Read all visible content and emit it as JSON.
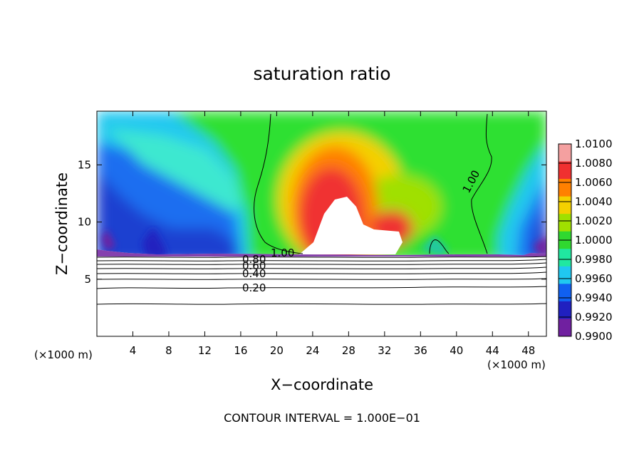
{
  "chart_data": {
    "type": "heatmap",
    "title": "saturation ratio",
    "xlabel": "X−coordinate",
    "ylabel": "Z−coordinate",
    "x_unit_left": "(×1000 m)",
    "x_unit_right": "(×1000 m)",
    "xlim": [
      0,
      50
    ],
    "ylim": [
      0,
      19.7
    ],
    "x_ticks": [
      4,
      8,
      12,
      16,
      20,
      24,
      28,
      32,
      36,
      40,
      44,
      48
    ],
    "y_ticks": [
      5,
      10,
      15
    ],
    "footer": "CONTOUR INTERVAL = 1.000E−01",
    "colorbar": {
      "levels": [
        "1.0100",
        "1.0080",
        "1.0060",
        "1.0040",
        "1.0020",
        "1.0000",
        "0.9980",
        "0.9960",
        "0.9940",
        "0.9920",
        "0.9900"
      ],
      "colors": [
        "#f4a0a0",
        "#f03030",
        "#ff8000",
        "#f4d000",
        "#a0e000",
        "#30d830",
        "#20e8a0",
        "#20c8f0",
        "#1060f0",
        "#2020c0",
        "#7020a0"
      ]
    },
    "contour_labels": [
      {
        "text": "1.00",
        "x": 19.8,
        "z": 7.5
      },
      {
        "text": "1.00",
        "x": 42.8,
        "z": 13.8
      },
      {
        "text": "0.80",
        "x": 17.8,
        "z": 6.9
      },
      {
        "text": "0.60",
        "x": 17.8,
        "z": 6.4
      },
      {
        "text": "0.40",
        "x": 17.8,
        "z": 5.7
      },
      {
        "text": "0.20",
        "x": 17.8,
        "z": 4.3
      }
    ]
  }
}
